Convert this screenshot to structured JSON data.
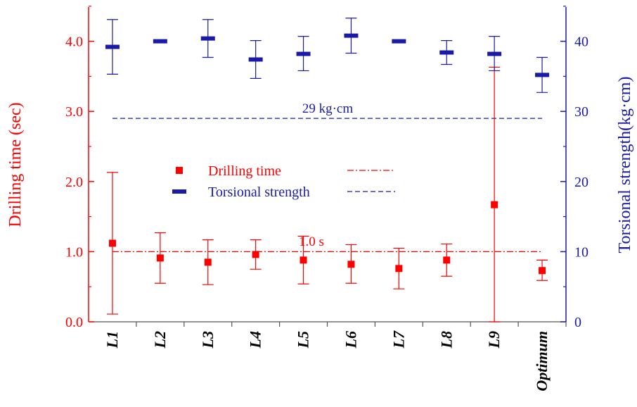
{
  "chart_data": {
    "type": "scatter",
    "categories": [
      "L1",
      "L2",
      "L3",
      "L4",
      "L5",
      "L6",
      "L7",
      "L8",
      "L9",
      "Optimum"
    ],
    "y_left": {
      "label": "Drilling time (sec)",
      "range": [
        0,
        4.5
      ],
      "ticks": [
        "0.0",
        "1.0",
        "2.0",
        "3.0",
        "4.0"
      ],
      "color": "#ff0000"
    },
    "y_right": {
      "label": "Torsional  strength(kg·cm)",
      "range": [
        0,
        45
      ],
      "ticks": [
        "0",
        "10",
        "20",
        "30",
        "40"
      ],
      "color": "#1a1aa6"
    },
    "series": [
      {
        "name": "Drilling time",
        "axis": "left",
        "marker": "square",
        "color": "#ff0000",
        "values": [
          1.12,
          0.91,
          0.85,
          0.96,
          0.88,
          0.82,
          0.76,
          0.88,
          1.67,
          0.73
        ],
        "err_low": [
          0.11,
          0.55,
          0.53,
          0.75,
          0.54,
          0.55,
          0.47,
          0.65,
          0.0,
          0.59
        ],
        "err_high": [
          2.13,
          1.27,
          1.17,
          1.17,
          1.22,
          1.1,
          1.05,
          1.11,
          3.63,
          0.88
        ]
      },
      {
        "name": "Torsional strength",
        "axis": "right",
        "marker": "dash",
        "color": "#1a1aa6",
        "values": [
          39.2,
          40.0,
          40.4,
          37.4,
          38.2,
          40.8,
          40.0,
          38.4,
          38.2,
          35.2
        ],
        "err_low": [
          35.3,
          40.0,
          37.7,
          34.7,
          35.8,
          38.3,
          40.0,
          36.7,
          35.8,
          32.7
        ],
        "err_high": [
          43.1,
          40.0,
          43.1,
          40.1,
          40.7,
          43.3,
          40.0,
          40.1,
          40.7,
          37.7
        ]
      }
    ],
    "reference_lines": [
      {
        "label": "1.0 s",
        "axis": "left",
        "value": 1.0,
        "style": "dash-dot",
        "color": "#ff0000"
      },
      {
        "label": "29 kg·cm",
        "axis": "right",
        "value": 29,
        "style": "dashed",
        "color": "#1a1aa6"
      }
    ],
    "legend": {
      "placement": "center-left",
      "items": [
        {
          "label": "Drilling time",
          "marker": "square",
          "line": "dash-dot",
          "color": "#ff0000"
        },
        {
          "label": "Torsional strength",
          "marker": "dash",
          "line": "dashed",
          "color": "#1a1aa6"
        }
      ]
    },
    "grid": false
  }
}
